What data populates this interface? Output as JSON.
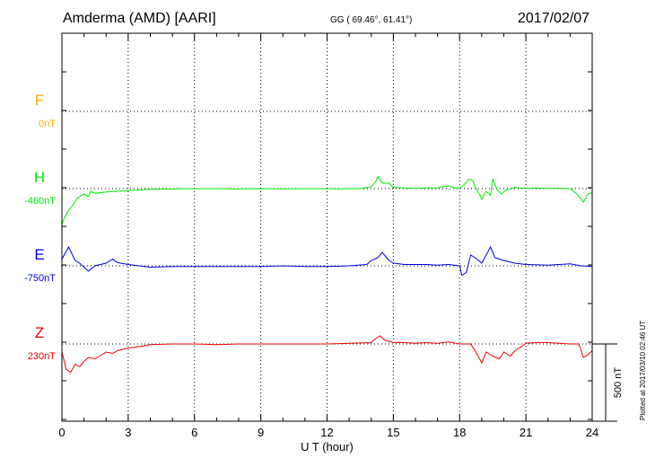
{
  "header": {
    "station": "Amderma (AMD)  [AARI]",
    "coords": "GG ( 69.46°,  61.41°)",
    "date": "2017/02/07"
  },
  "footer": {
    "plotted": "Plotted at 2017/03/10 02:46 UT"
  },
  "colors": {
    "F": "#ffaa00",
    "H": "#00ee00",
    "E": "#0000dd",
    "Z": "#ee0000",
    "axis": "#000000"
  },
  "chart_data": {
    "type": "line",
    "title": "Amderma (AMD)  [AARI]",
    "xlabel": "U T (hour)",
    "ylabel": "",
    "xlim": [
      0,
      24
    ],
    "x_ticks": [
      0,
      3,
      6,
      9,
      12,
      15,
      18,
      21,
      24
    ],
    "grid": true,
    "scale_bar": {
      "label": "500 nT",
      "value": 500
    },
    "components": [
      {
        "name": "F",
        "baseline_label": "0nT"
      },
      {
        "name": "H",
        "baseline_label": "-460nT"
      },
      {
        "name": "E",
        "baseline_label": "-750nT"
      },
      {
        "name": "Z",
        "baseline_label": "230nT"
      }
    ],
    "series": [
      {
        "name": "H",
        "x": [
          0,
          0.1,
          0.3,
          0.5,
          0.7,
          1.0,
          1.2,
          1.3,
          1.5,
          2.0,
          2.5,
          3.0,
          3.5,
          4.0,
          5.0,
          6.0,
          7.0,
          8.0,
          9.0,
          10.0,
          11.0,
          12.0,
          12.5,
          13.0,
          13.5,
          14.0,
          14.2,
          14.3,
          14.5,
          14.8,
          15.0,
          15.5,
          16.0,
          16.5,
          17.0,
          17.3,
          17.5,
          17.8,
          18.0,
          18.3,
          18.4,
          18.6,
          18.7,
          18.9,
          19.0,
          19.2,
          19.4,
          19.5,
          19.7,
          19.9,
          20.1,
          20.3,
          20.5,
          21.0,
          21.5,
          22.0,
          22.5,
          23.0,
          23.3,
          23.6,
          23.8,
          24.0
        ],
        "values": [
          -270,
          -220,
          -160,
          -120,
          -70,
          -40,
          -60,
          -20,
          -35,
          -25,
          -20,
          -15,
          -10,
          -5,
          -3,
          0,
          0,
          -3,
          0,
          -3,
          0,
          0,
          -3,
          0,
          0,
          15,
          50,
          90,
          40,
          40,
          10,
          5,
          0,
          5,
          5,
          15,
          20,
          5,
          0,
          45,
          70,
          60,
          10,
          -40,
          -80,
          -20,
          -50,
          70,
          -10,
          -40,
          -10,
          -5,
          10,
          0,
          5,
          0,
          3,
          0,
          -40,
          -100,
          -40,
          -30
        ]
      },
      {
        "name": "E",
        "x": [
          0,
          0.1,
          0.3,
          0.6,
          0.8,
          1.0,
          1.2,
          1.5,
          2.0,
          2.3,
          2.5,
          3.0,
          3.5,
          4.0,
          5.0,
          6.0,
          7.0,
          8.0,
          9.0,
          10.0,
          11.0,
          12.0,
          13.0,
          13.8,
          14.0,
          14.3,
          14.5,
          14.8,
          15.0,
          15.5,
          16.0,
          16.5,
          17.0,
          17.5,
          18.0,
          18.1,
          18.3,
          18.5,
          18.7,
          19.0,
          19.2,
          19.4,
          19.6,
          19.8,
          20.0,
          20.5,
          21.0,
          22.0,
          22.5,
          23.0,
          23.5,
          24.0
        ],
        "values": [
          50,
          80,
          140,
          40,
          20,
          -10,
          -40,
          0,
          20,
          50,
          25,
          10,
          0,
          -10,
          -5,
          -5,
          -5,
          -5,
          -5,
          0,
          -5,
          -5,
          0,
          10,
          40,
          60,
          100,
          40,
          20,
          10,
          10,
          10,
          5,
          10,
          0,
          -70,
          -50,
          80,
          60,
          20,
          80,
          140,
          60,
          50,
          40,
          20,
          10,
          5,
          10,
          15,
          0,
          -5
        ]
      },
      {
        "name": "Z",
        "x": [
          0,
          0.2,
          0.4,
          0.6,
          0.8,
          1.0,
          1.2,
          1.5,
          2.0,
          2.3,
          2.5,
          3.0,
          3.5,
          4.0,
          5.0,
          6.0,
          7.0,
          8.0,
          9.0,
          10.0,
          11.0,
          12.0,
          13.0,
          14.0,
          14.2,
          14.4,
          14.6,
          14.8,
          15.0,
          15.5,
          16.0,
          16.5,
          17.0,
          17.5,
          18.0,
          18.5,
          18.8,
          19.0,
          19.2,
          19.5,
          19.8,
          20.0,
          20.3,
          20.5,
          20.8,
          21.0,
          21.5,
          22.0,
          22.5,
          23.0,
          23.4,
          23.6,
          23.8,
          24.0
        ],
        "values": [
          -60,
          -190,
          -210,
          -150,
          -170,
          -130,
          -100,
          -110,
          -60,
          -70,
          -50,
          -30,
          -20,
          -5,
          0,
          0,
          -5,
          0,
          0,
          0,
          0,
          0,
          5,
          10,
          40,
          60,
          30,
          20,
          10,
          10,
          5,
          10,
          5,
          15,
          0,
          0,
          -80,
          -140,
          -60,
          -90,
          -110,
          -60,
          -90,
          -50,
          -20,
          5,
          10,
          10,
          5,
          0,
          0,
          -100,
          -80,
          -50
        ]
      }
    ]
  }
}
